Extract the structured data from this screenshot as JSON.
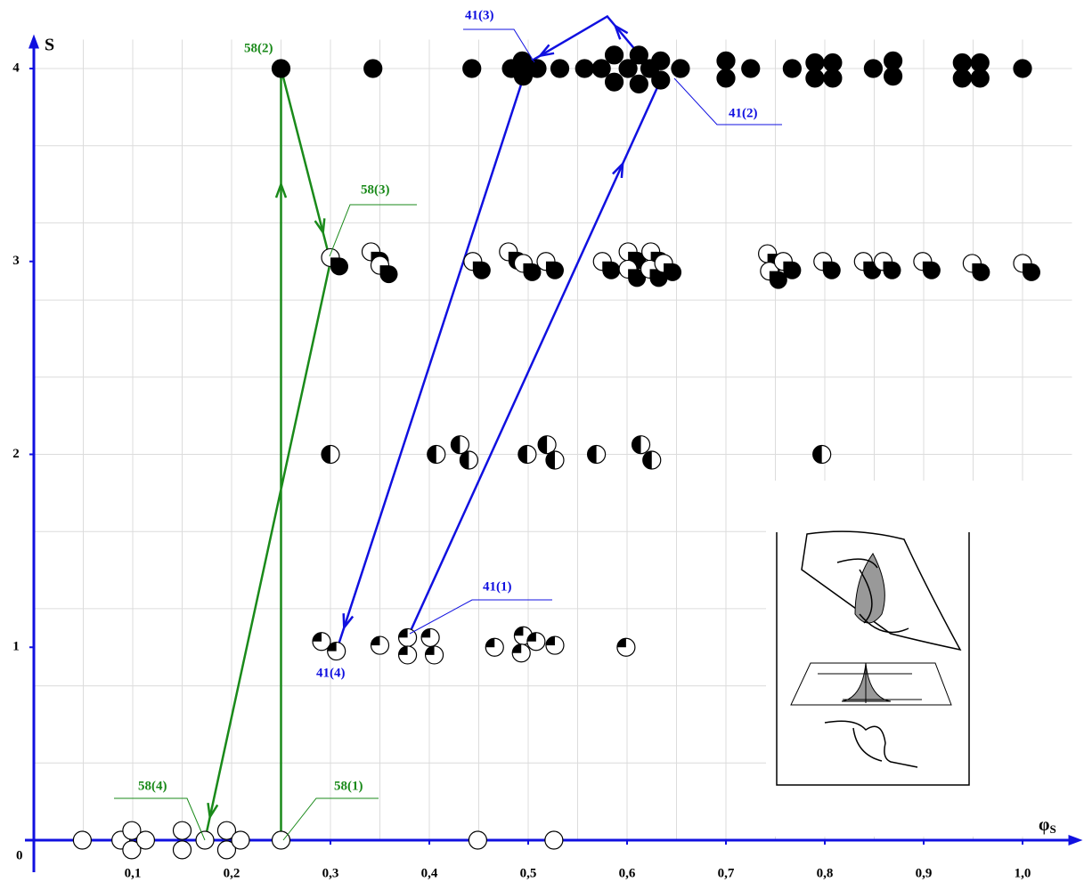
{
  "chart_data": {
    "type": "scatter",
    "x_label": "φ",
    "x_label_sub": "S",
    "y_label": "S",
    "origin_label": "0",
    "xlim": [
      0,
      1.05
    ],
    "ylim": [
      0,
      4.15
    ],
    "xticks": [
      {
        "value": 0.1,
        "label": "0,1"
      },
      {
        "value": 0.2,
        "label": "0,2"
      },
      {
        "value": 0.3,
        "label": "0,3"
      },
      {
        "value": 0.4,
        "label": "0,4"
      },
      {
        "value": 0.5,
        "label": "0,5"
      },
      {
        "value": 0.6,
        "label": "0,6"
      },
      {
        "value": 0.7,
        "label": "0,7"
      },
      {
        "value": 0.8,
        "label": "0,8"
      },
      {
        "value": 0.9,
        "label": "0,9"
      },
      {
        "value": 1.0,
        "label": "1,0"
      }
    ],
    "yticks": [
      1,
      2,
      3,
      4
    ],
    "x_grid": [
      0.05,
      0.1,
      0.15,
      0.2,
      0.25,
      0.3,
      0.35,
      0.4,
      0.45,
      0.5,
      0.55,
      0.6,
      0.65,
      0.7,
      0.75,
      0.8,
      0.85,
      0.9,
      0.95,
      1.0
    ],
    "y_grid": [
      0.4,
      0.8,
      1.2,
      1.6,
      2.0,
      2.4,
      2.8,
      3.2,
      3.6,
      4.0
    ],
    "grid": true,
    "axis_color": "#1010e0",
    "series": [
      {
        "marker": "empty",
        "x": [
          0.049,
          0.088,
          0.099,
          0.099,
          0.113,
          0.15,
          0.15,
          0.173,
          0.195,
          0.195,
          0.209,
          0.25,
          0.449,
          0.526
        ],
        "y": [
          0,
          0,
          0.05,
          -0.05,
          0,
          0.05,
          -0.05,
          0,
          0.05,
          -0.05,
          0,
          0,
          0,
          0
        ]
      },
      {
        "marker": "quarter",
        "x": [
          0.291,
          0.306,
          0.35,
          0.378,
          0.378,
          0.401,
          0.405,
          0.466,
          0.495,
          0.493,
          0.508,
          0.527,
          0.599
        ],
        "y": [
          1.03,
          0.98,
          1.01,
          1.05,
          0.96,
          1.05,
          0.96,
          1.0,
          1.06,
          0.97,
          1.03,
          1.01,
          1.0
        ]
      },
      {
        "marker": "half",
        "x": [
          0.3,
          0.407,
          0.431,
          0.44,
          0.499,
          0.519,
          0.527,
          0.569,
          0.614,
          0.625,
          0.797
        ],
        "y": [
          2,
          2,
          2.05,
          1.97,
          2,
          2.05,
          1.97,
          2,
          2.05,
          1.97,
          2
        ]
      },
      {
        "marker": "three-quarter",
        "x": [
          0.3,
          0.341,
          0.35,
          0.444,
          0.48,
          0.495,
          0.518,
          0.575,
          0.601,
          0.601,
          0.624,
          0.623,
          0.637,
          0.742,
          0.744,
          0.758,
          0.798,
          0.839,
          0.859,
          0.899,
          0.949,
          1.0
        ],
        "y": [
          3.02,
          3.05,
          2.98,
          3.0,
          3.05,
          2.99,
          3.0,
          3.0,
          3.05,
          2.96,
          3.05,
          2.96,
          2.99,
          3.04,
          2.95,
          3.0,
          3.0,
          3.0,
          3.0,
          3.0,
          2.99,
          2.99
        ]
      },
      {
        "marker": "full",
        "x": [
          0.25,
          0.343,
          0.443,
          0.483,
          0.494,
          0.495,
          0.509,
          0.532,
          0.557,
          0.574,
          0.587,
          0.587,
          0.601,
          0.612,
          0.612,
          0.623,
          0.634,
          0.634,
          0.654,
          0.7,
          0.7,
          0.725,
          0.767,
          0.79,
          0.808,
          0.79,
          0.808,
          0.849,
          0.869,
          0.869,
          0.939,
          0.957,
          0.939,
          0.957,
          1.0
        ],
        "y": [
          4,
          4,
          4,
          4,
          4.04,
          3.96,
          4,
          4,
          4,
          4,
          4.07,
          3.93,
          4,
          4.07,
          3.92,
          4,
          3.94,
          4.04,
          4,
          4.04,
          3.95,
          4,
          4,
          4.03,
          4.03,
          3.95,
          3.95,
          4,
          4.04,
          3.96,
          4.03,
          4.03,
          3.95,
          3.95,
          4
        ]
      }
    ],
    "trajectories": [
      {
        "color": "#1a8a1a",
        "x": [
          0.25,
          0.25,
          0.3,
          0.173
        ],
        "y": [
          0,
          4,
          3,
          0
        ]
      },
      {
        "color": "#1010e0",
        "x": [
          0.378,
          0.634,
          0.58,
          0.5,
          0.306
        ],
        "y": [
          1.05,
          3.94,
          4.27,
          4.03,
          0.98
        ]
      }
    ],
    "annotations": [
      {
        "label": "58(1)",
        "color": "#1a8a1a"
      },
      {
        "label": "58(2)",
        "color": "#1a8a1a"
      },
      {
        "label": "58(3)",
        "color": "#1a8a1a"
      },
      {
        "label": "58(4)",
        "color": "#1a8a1a"
      },
      {
        "label": "41(1)",
        "color": "#1010e0"
      },
      {
        "label": "41(2)",
        "color": "#1010e0"
      },
      {
        "label": "41(3)",
        "color": "#1010e0"
      },
      {
        "label": "41(4)",
        "color": "#1010e0"
      }
    ]
  }
}
